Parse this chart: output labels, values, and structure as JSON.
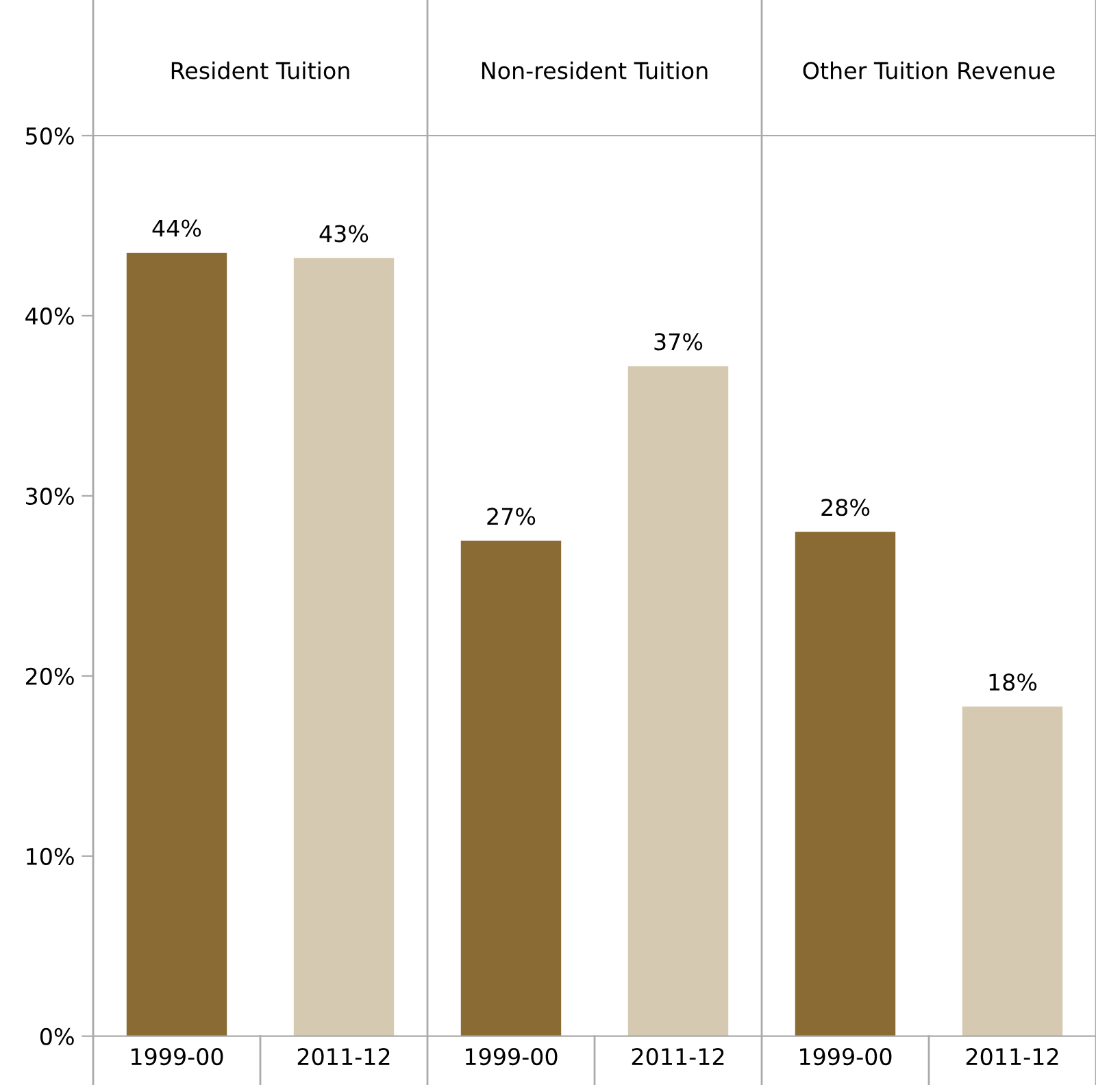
{
  "chart_data": {
    "type": "bar",
    "categories": [
      "1999-00",
      "2011-12",
      "1999-00",
      "2011-12",
      "1999-00",
      "2011-12"
    ],
    "values": [
      43.5,
      43.2,
      27.5,
      37.2,
      28.0,
      18.3
    ],
    "colors": [
      "#8a6b34",
      "#d5c9b1",
      "#8a6b34",
      "#d5c9b1",
      "#8a6b34",
      "#d5c9b1"
    ],
    "value_labels": [
      "44%",
      "43%",
      "27%",
      "37%",
      "28%",
      "18%"
    ],
    "annotations": [
      "Resident Tuition",
      "Non-resident Tuition",
      "Other Tuition Revenue"
    ],
    "ylim": [
      0,
      50
    ],
    "yticks": [
      {
        "value": 0,
        "label": "0%"
      },
      {
        "value": 10,
        "label": "10%"
      },
      {
        "value": 20,
        "label": "20%"
      },
      {
        "value": 30,
        "label": "30%"
      },
      {
        "value": 40,
        "label": "40%"
      },
      {
        "value": 50,
        "label": "50%"
      }
    ],
    "grid": false,
    "legend": false
  }
}
